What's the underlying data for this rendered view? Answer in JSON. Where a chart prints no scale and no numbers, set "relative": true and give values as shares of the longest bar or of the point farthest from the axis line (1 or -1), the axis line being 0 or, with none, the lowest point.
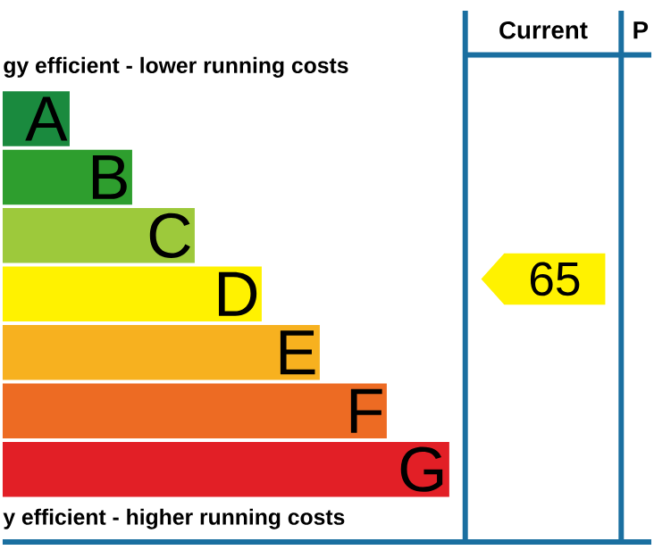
{
  "chart_data": {
    "type": "bar",
    "orientation": "horizontal",
    "relative": true,
    "title": "gy efficient - lower running costs",
    "categories": [
      "A",
      "B",
      "C",
      "D",
      "E",
      "F",
      "G"
    ],
    "values": [
      0.15,
      0.29,
      0.43,
      0.58,
      0.71,
      0.86,
      1
    ],
    "colors": [
      "#1a8a3e",
      "#2e9e2e",
      "#9dc93b",
      "#fff200",
      "#f7b11f",
      "#ed6b23",
      "#e21f26"
    ],
    "annotations": [
      "y efficient - higher running costs",
      "65",
      "Current",
      "P"
    ]
  }
}
